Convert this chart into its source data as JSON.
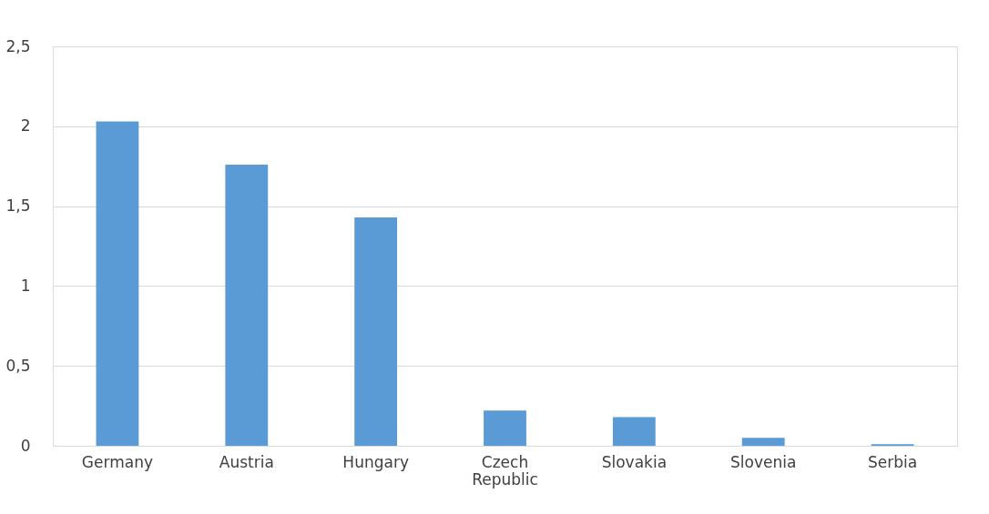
{
  "chart_data": {
    "type": "bar",
    "categories": [
      "Germany",
      "Austria",
      "Hungary",
      "Czech Republic",
      "Slovakia",
      "Slovenia",
      "Serbia"
    ],
    "values": [
      2.03,
      1.76,
      1.43,
      0.22,
      0.18,
      0.05,
      0.01
    ],
    "color": "#5b9bd5",
    "ylim": [
      0,
      2.5
    ],
    "yticks": [
      0,
      {
        "value": 0.5,
        "label": "0,5"
      },
      1,
      {
        "value": 1.5,
        "label": "1,5"
      },
      2,
      {
        "value": 2.5,
        "label": "2,5"
      }
    ],
    "grid": "y"
  }
}
